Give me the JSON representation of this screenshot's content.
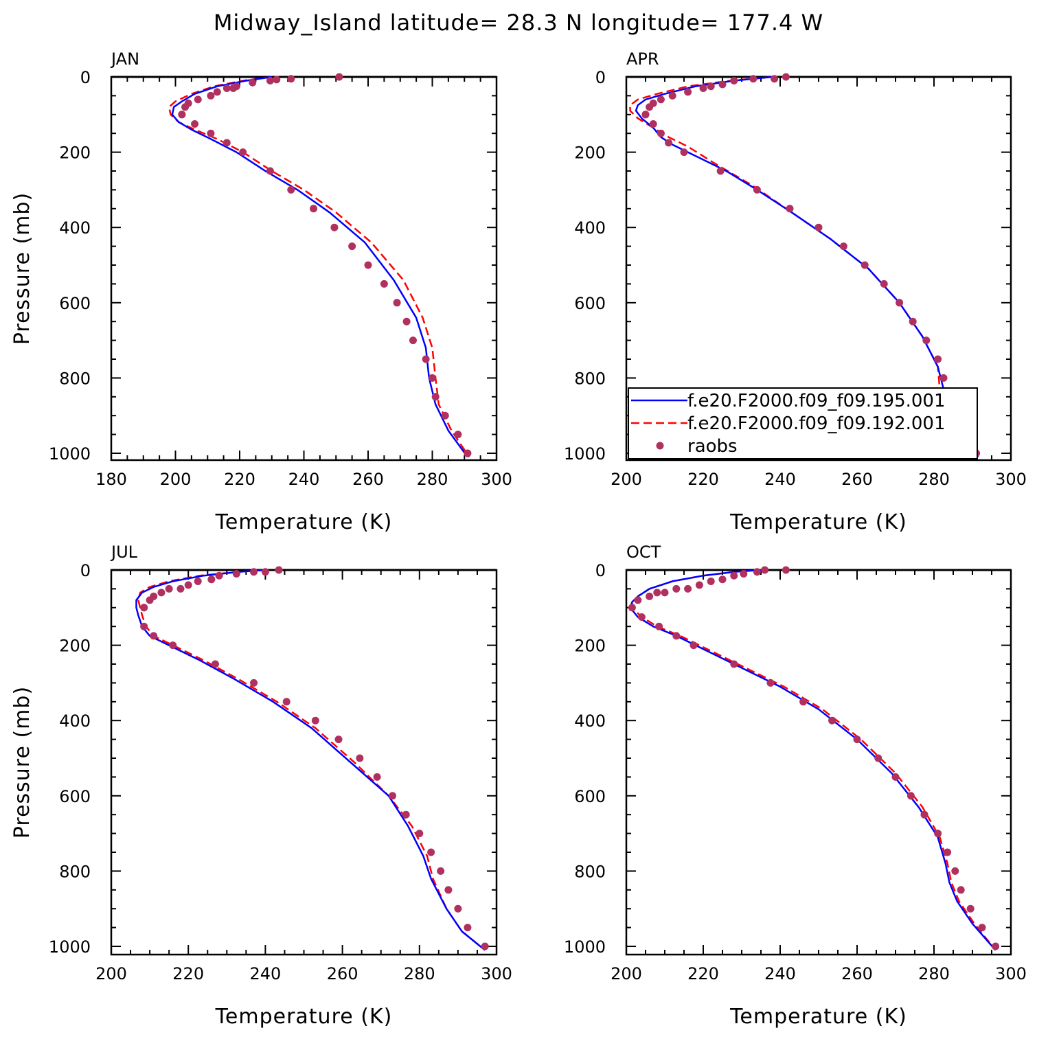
{
  "title": "Midway_Island  latitude= 28.3 N longitude= 177.4 W",
  "colors": {
    "model_195": "#0000ff",
    "model_192": "#ff0000",
    "raobs": "#b03060"
  },
  "legend": {
    "panel": "APR",
    "entries": [
      {
        "label": "f.e20.F2000.f09_f09.195.001",
        "style": "solid",
        "color": "#0000ff"
      },
      {
        "label": "f.e20.F2000.f09_f09.192.001",
        "style": "dashed",
        "color": "#ff0000"
      },
      {
        "label": "raobs",
        "style": "marker",
        "color": "#b03060"
      }
    ]
  },
  "chart_data": [
    {
      "type": "line",
      "panel": "JAN",
      "xlabel": "Temperature (K)",
      "ylabel": "Pressure (mb)",
      "xlim": [
        180,
        300
      ],
      "xticks": [
        180,
        200,
        220,
        240,
        260,
        280,
        300
      ],
      "ylim": [
        1000,
        0
      ],
      "yticks": [
        0,
        200,
        400,
        600,
        800,
        1000
      ],
      "series": [
        {
          "name": "f.e20.F2000.f09_f09.195.001",
          "style": "solid",
          "x": [
            230,
            222,
            213,
            206,
            202,
            199.5,
            199,
            201,
            205,
            211,
            219,
            228,
            238,
            248,
            259,
            268,
            275,
            278,
            279,
            281,
            285,
            291
          ],
          "y": [
            0,
            10,
            25,
            45,
            65,
            80,
            100,
            120,
            140,
            165,
            200,
            250,
            300,
            360,
            440,
            540,
            640,
            720,
            800,
            870,
            940,
            1010
          ]
        },
        {
          "name": "f.e20.F2000.f09_f09.192.001",
          "style": "dashed",
          "x": [
            230,
            221,
            212,
            205,
            200,
            198,
            198.5,
            201,
            206,
            213,
            221,
            230,
            240,
            250,
            261,
            271,
            277,
            280,
            281,
            282,
            286,
            291.5
          ],
          "y": [
            0,
            10,
            25,
            45,
            65,
            80,
            100,
            120,
            140,
            165,
            200,
            250,
            300,
            360,
            440,
            540,
            640,
            720,
            800,
            870,
            940,
            1010
          ]
        },
        {
          "name": "raobs",
          "style": "marker",
          "x": [
            251,
            236,
            231.5,
            229.5,
            224,
            219,
            218,
            216,
            213,
            211,
            207,
            204,
            203,
            202,
            202,
            206,
            211,
            216,
            221,
            229.5,
            236,
            243,
            249.5,
            255,
            260,
            265,
            269,
            272,
            274,
            278,
            280,
            281,
            284,
            288,
            291
          ],
          "y": [
            0,
            5,
            7,
            10,
            15,
            25,
            30,
            30,
            40,
            50,
            60,
            70,
            80,
            100,
            100,
            125,
            150,
            175,
            200,
            250,
            300,
            350,
            400,
            450,
            500,
            550,
            600,
            650,
            700,
            750,
            800,
            850,
            900,
            950,
            1000
          ]
        }
      ]
    },
    {
      "type": "line",
      "panel": "APR",
      "xlabel": "Temperature (K)",
      "ylabel": "",
      "xlim": [
        200,
        300
      ],
      "xticks": [
        200,
        220,
        240,
        260,
        280,
        300
      ],
      "ylim": [
        1000,
        0
      ],
      "yticks": [
        0,
        200,
        400,
        600,
        800,
        1000
      ],
      "series": [
        {
          "name": "f.e20.F2000.f09_f09.195.001",
          "style": "solid",
          "x": [
            238,
            228,
            218,
            210,
            205,
            203,
            202.5,
            204,
            207,
            209,
            212,
            218,
            226,
            234,
            243,
            253,
            263,
            271,
            277,
            281,
            282.5,
            285,
            288,
            291.5
          ],
          "y": [
            0,
            10,
            25,
            45,
            60,
            75,
            90,
            110,
            135,
            160,
            180,
            210,
            250,
            300,
            360,
            430,
            510,
            600,
            690,
            770,
            830,
            900,
            960,
            1010
          ]
        },
        {
          "name": "f.e20.F2000.f09_f09.192.001",
          "style": "dashed",
          "x": [
            238,
            227,
            216,
            208,
            203,
            201,
            201,
            203,
            207,
            211,
            216,
            223,
            233,
            243,
            253,
            263,
            271,
            277,
            281,
            281.5,
            282.5,
            285.5,
            288,
            291.5
          ],
          "y": [
            0,
            10,
            25,
            45,
            60,
            75,
            90,
            110,
            135,
            160,
            185,
            230,
            290,
            360,
            430,
            510,
            600,
            690,
            770,
            830,
            900,
            940,
            970,
            1010
          ]
        },
        {
          "name": "raobs",
          "style": "marker",
          "x": [
            241.5,
            238.5,
            233,
            228,
            225,
            222,
            220,
            216,
            212,
            209,
            207,
            206,
            205,
            205,
            207,
            209,
            211,
            215,
            224.5,
            234,
            242.5,
            250,
            256.5,
            262,
            267,
            271,
            274.5,
            278,
            281,
            282.5,
            282.5,
            284,
            287,
            291
          ],
          "y": [
            0,
            5,
            5,
            10,
            20,
            25,
            30,
            40,
            50,
            60,
            70,
            80,
            100,
            100,
            125,
            150,
            175,
            200,
            250,
            300,
            350,
            400,
            450,
            500,
            550,
            600,
            650,
            700,
            750,
            800,
            850,
            900,
            950,
            1000
          ]
        }
      ]
    },
    {
      "type": "line",
      "panel": "JUL",
      "xlabel": "Temperature (K)",
      "ylabel": "Pressure (mb)",
      "xlim": [
        200,
        300
      ],
      "xticks": [
        200,
        220,
        240,
        260,
        280,
        300
      ],
      "ylim": [
        1000,
        0
      ],
      "yticks": [
        0,
        200,
        400,
        600,
        800,
        1000
      ],
      "series": [
        {
          "name": "f.e20.F2000.f09_f09.195.001",
          "style": "solid",
          "x": [
            240,
            233,
            224,
            216,
            211,
            208,
            206.5,
            206.5,
            207,
            208,
            210,
            215,
            223,
            232,
            242,
            252,
            262,
            272,
            277,
            281,
            283,
            287,
            291,
            297
          ],
          "y": [
            0,
            5,
            15,
            30,
            45,
            60,
            80,
            100,
            120,
            150,
            175,
            200,
            240,
            290,
            350,
            420,
            510,
            600,
            680,
            760,
            820,
            900,
            960,
            1010
          ]
        },
        {
          "name": "f.e20.F2000.f09_f09.192.001",
          "style": "dashed",
          "x": [
            240,
            233,
            223,
            215,
            210,
            207.5,
            207,
            207.5,
            208,
            209,
            211,
            216,
            224,
            233,
            243,
            253,
            263,
            272,
            278,
            282,
            283.5,
            287,
            291,
            297
          ],
          "y": [
            0,
            5,
            15,
            30,
            45,
            60,
            80,
            100,
            120,
            150,
            175,
            200,
            240,
            290,
            350,
            420,
            510,
            600,
            680,
            760,
            820,
            900,
            960,
            1010
          ]
        },
        {
          "name": "raobs",
          "style": "marker",
          "x": [
            243.5,
            240,
            237,
            232.5,
            228,
            226,
            222.5,
            220,
            218,
            215,
            213,
            211,
            210,
            208.5,
            208.5,
            208.5,
            211,
            216,
            227,
            237,
            245.5,
            253,
            259,
            264.5,
            269,
            273,
            276.5,
            280,
            283,
            285.5,
            287.5,
            290,
            292.5,
            297
          ],
          "y": [
            0,
            5,
            5,
            10,
            15,
            25,
            30,
            40,
            50,
            50,
            60,
            70,
            80,
            100,
            100,
            150,
            175,
            200,
            250,
            300,
            350,
            400,
            450,
            500,
            550,
            600,
            650,
            700,
            750,
            800,
            850,
            900,
            950,
            1000
          ]
        }
      ]
    },
    {
      "type": "line",
      "panel": "OCT",
      "xlabel": "Temperature (K)",
      "ylabel": "",
      "xlim": [
        200,
        300
      ],
      "xticks": [
        200,
        220,
        240,
        260,
        280,
        300
      ],
      "ylim": [
        1000,
        0
      ],
      "yticks": [
        0,
        200,
        400,
        600,
        800,
        1000
      ],
      "series": [
        {
          "name": "f.e20.F2000.f09_f09.195.001",
          "style": "solid",
          "x": [
            235,
            228,
            220,
            212,
            206,
            203,
            201.5,
            201,
            203,
            207,
            213,
            220,
            230,
            240,
            250,
            260,
            269,
            276,
            281,
            283,
            284,
            286,
            290,
            296
          ],
          "y": [
            0,
            5,
            15,
            30,
            50,
            70,
            85,
            100,
            125,
            150,
            175,
            210,
            260,
            310,
            370,
            450,
            540,
            630,
            710,
            780,
            830,
            880,
            940,
            1010
          ]
        },
        {
          "name": "f.e20.F2000.f09_f09.192.001",
          "style": "dashed",
          "x": [
            235,
            228,
            220,
            212,
            206,
            203,
            201.5,
            201.5,
            204,
            208,
            214,
            221,
            231,
            241,
            251,
            261,
            270,
            277,
            281.5,
            283.5,
            284.5,
            286.5,
            290.5,
            296
          ],
          "y": [
            0,
            5,
            15,
            30,
            50,
            70,
            85,
            100,
            125,
            150,
            175,
            210,
            260,
            310,
            370,
            450,
            540,
            630,
            710,
            780,
            830,
            880,
            940,
            1010
          ]
        },
        {
          "name": "raobs",
          "style": "marker",
          "x": [
            241.5,
            236,
            234,
            230.5,
            228,
            225,
            222,
            219,
            216,
            213,
            210,
            208,
            206,
            203,
            201.5,
            204,
            208.5,
            213,
            217.5,
            228,
            237.5,
            246,
            253.5,
            260,
            265.5,
            270,
            274,
            277.5,
            281,
            283.5,
            285.5,
            287,
            289.5,
            292.5,
            296
          ],
          "y": [
            0,
            0,
            5,
            10,
            15,
            25,
            30,
            40,
            50,
            50,
            60,
            60,
            70,
            80,
            100,
            125,
            150,
            175,
            200,
            250,
            300,
            350,
            400,
            450,
            500,
            550,
            600,
            650,
            700,
            750,
            800,
            850,
            900,
            950,
            1000
          ]
        }
      ]
    }
  ]
}
